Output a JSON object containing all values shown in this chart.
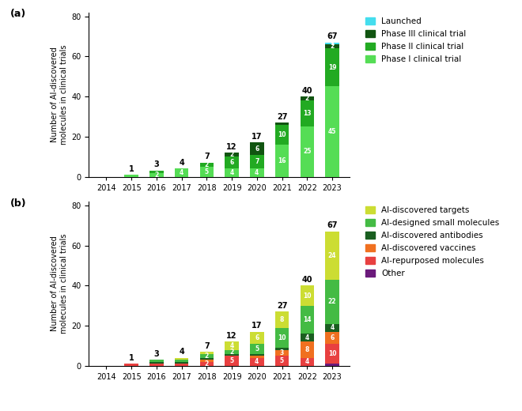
{
  "years": [
    "2014",
    "2015",
    "2016",
    "2017",
    "2018",
    "2019",
    "2020",
    "2021",
    "2022",
    "2023"
  ],
  "totals_a": [
    0,
    1,
    3,
    4,
    7,
    12,
    17,
    27,
    40,
    67
  ],
  "totals_b": [
    0,
    1,
    3,
    4,
    7,
    12,
    17,
    27,
    40,
    67
  ],
  "chart_a": {
    "phase1": [
      0,
      1,
      2,
      4,
      5,
      4,
      4,
      16,
      25,
      45
    ],
    "phase2": [
      0,
      0,
      1,
      0,
      2,
      6,
      7,
      10,
      13,
      19
    ],
    "phase3": [
      0,
      0,
      0,
      0,
      0,
      2,
      6,
      1,
      2,
      2
    ],
    "launched": [
      0,
      0,
      0,
      0,
      0,
      0,
      0,
      0,
      0,
      1
    ],
    "colors": {
      "phase1": "#55dd55",
      "phase2": "#22aa22",
      "phase3": "#115511",
      "launched": "#44ddee"
    }
  },
  "chart_b": {
    "other": [
      0,
      0,
      0,
      0,
      0,
      0,
      0,
      0,
      0,
      1
    ],
    "repurposed": [
      0,
      1,
      1,
      1,
      2,
      5,
      4,
      5,
      4,
      10
    ],
    "vaccines": [
      0,
      0,
      0,
      0,
      1,
      0,
      1,
      3,
      8,
      6
    ],
    "antibodies": [
      0,
      0,
      1,
      1,
      1,
      1,
      1,
      1,
      4,
      4
    ],
    "small_mol": [
      0,
      0,
      1,
      1,
      2,
      2,
      5,
      10,
      14,
      22
    ],
    "targets": [
      0,
      0,
      0,
      1,
      1,
      4,
      6,
      8,
      10,
      24
    ],
    "colors": {
      "other": "#6b1a7b",
      "repurposed": "#e84040",
      "vaccines": "#f07020",
      "antibodies": "#1a5e20",
      "small_mol": "#44bb44",
      "targets": "#ccdd33"
    }
  },
  "ylabel": "Number of AI-discovered\nmolecules in clinical trials",
  "ylim": [
    0,
    82
  ],
  "yticks": [
    0,
    20,
    40,
    60,
    80
  ],
  "bg_color": "#ffffff"
}
